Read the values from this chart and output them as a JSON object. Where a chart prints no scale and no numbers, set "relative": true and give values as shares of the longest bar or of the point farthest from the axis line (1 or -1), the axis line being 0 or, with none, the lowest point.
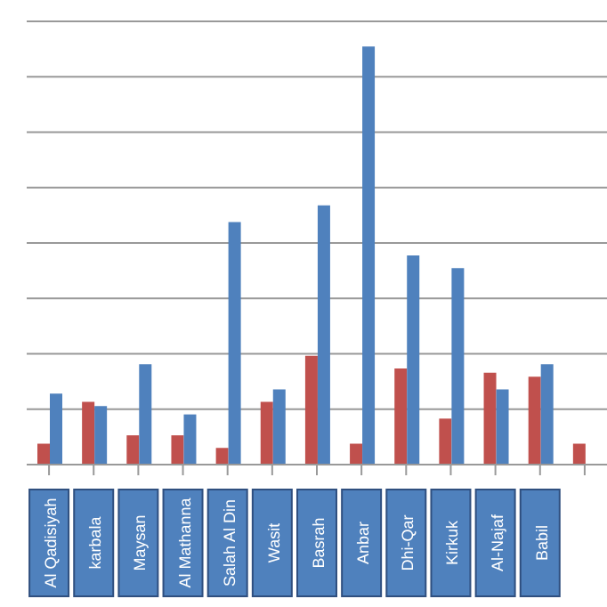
{
  "chart_data": {
    "type": "bar",
    "relative": true,
    "grid": "y",
    "categories": [
      "Al Qadisiyah",
      "karbala",
      "Maysan",
      "Al Mathanna",
      "Salah Al Din",
      "Wasit",
      "Basrah",
      "Anbar",
      "Dhi-Qar",
      "Kirkuk",
      "Al-Najaf",
      "Babil",
      null
    ],
    "series": [
      {
        "color": "#c0504d",
        "values": [
          0.05,
          0.15,
          0.07,
          0.07,
          0.04,
          0.15,
          0.26,
          0.05,
          0.23,
          0.11,
          0.22,
          0.21,
          0.05
        ]
      },
      {
        "color": "#4f81bd",
        "values": [
          0.17,
          0.14,
          0.24,
          0.12,
          0.58,
          0.18,
          0.62,
          1,
          0.5,
          0.47,
          0.18,
          0.24,
          null
        ]
      }
    ]
  }
}
